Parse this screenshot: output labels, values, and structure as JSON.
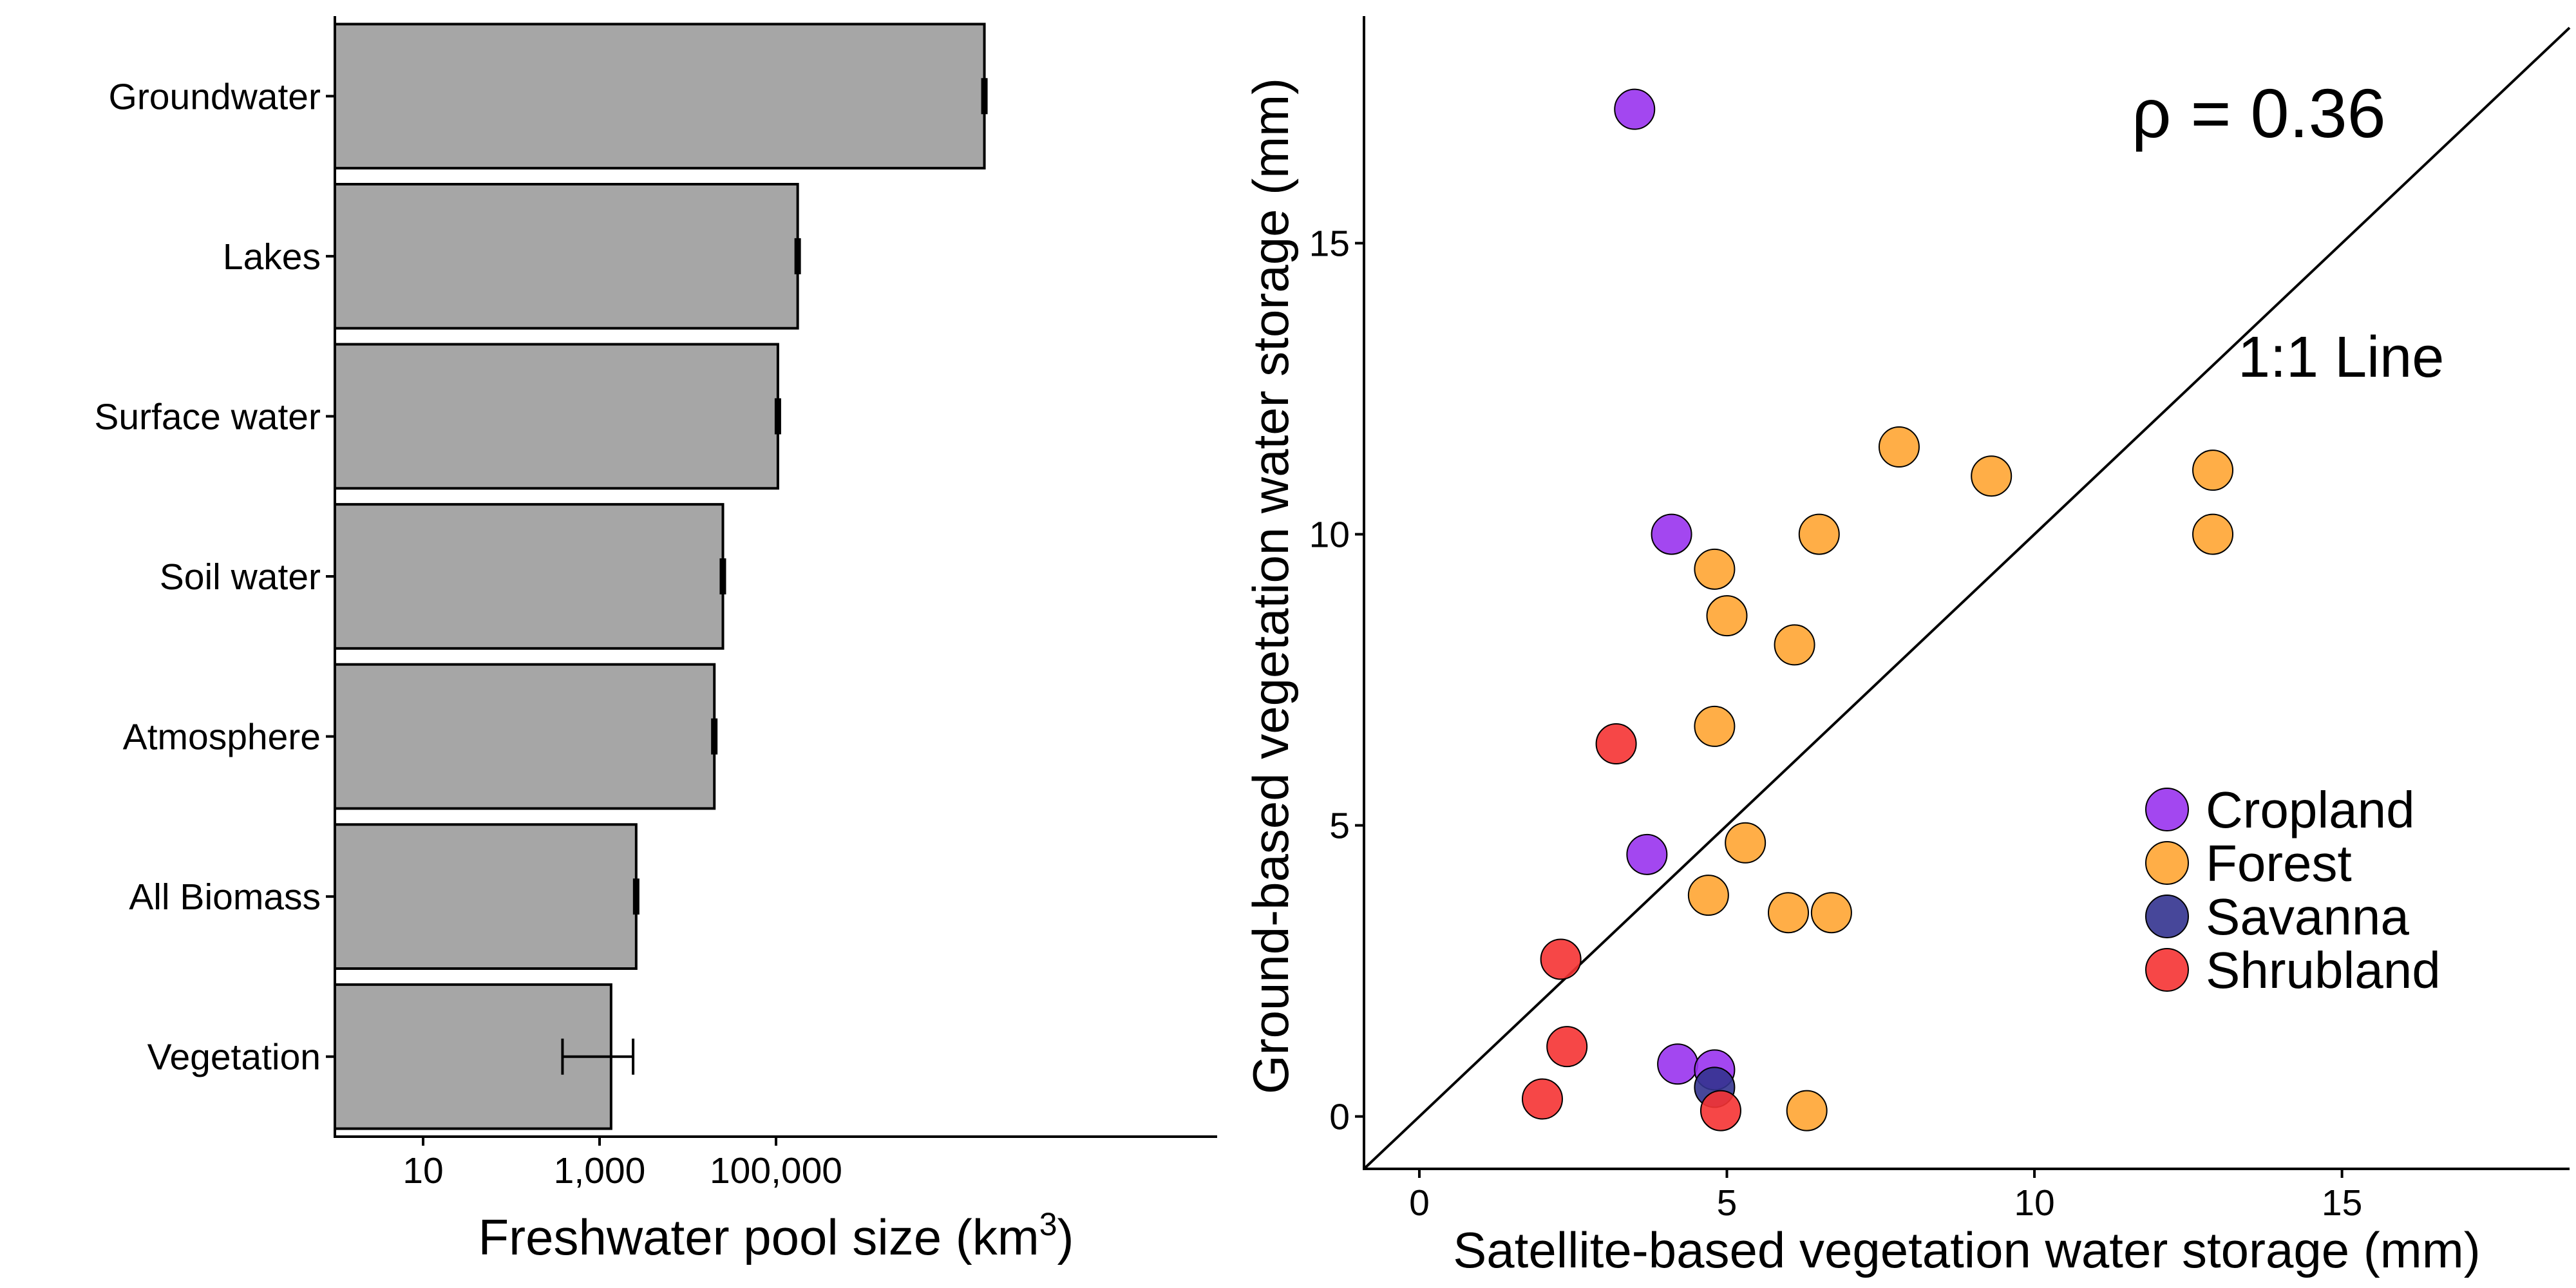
{
  "chart_data": [
    {
      "type": "bar",
      "orientation": "horizontal",
      "x_scale": "log10",
      "xlabel": "Freshwater pool size (km",
      "xlabel_superscript": "3",
      "xlabel_close": ")",
      "xlim": [
        1,
        10000000000
      ],
      "x_ticks": [
        {
          "value": 10,
          "label": "10"
        },
        {
          "value": 1000,
          "label": "1,000"
        },
        {
          "value": 100000,
          "label": "100,000"
        }
      ],
      "bar_color": "#a6a6a6",
      "categories": [
        "Groundwater",
        "Lakes",
        "Surface water",
        "Soil water",
        "Atmosphere",
        "All Biomass",
        "Vegetation"
      ],
      "values": [
        23000000,
        176000,
        105000,
        25000,
        20000,
        2600,
        1350
      ],
      "error_bars": [
        [
          23000000,
          23000000
        ],
        [
          176000,
          176000
        ],
        [
          105000,
          105000
        ],
        [
          24000,
          26000
        ],
        [
          19000,
          21000
        ],
        [
          2600,
          2600
        ],
        [
          380,
          2400
        ]
      ]
    },
    {
      "type": "scatter",
      "xlabel": "Satellite-based vegetation water storage (mm)",
      "ylabel": "Ground-based vegetation water storage (mm)",
      "xlim": [
        -0.9,
        18.7
      ],
      "ylim": [
        -0.9,
        18.9
      ],
      "x_ticks": [
        0,
        5,
        10,
        15
      ],
      "y_ticks": [
        0,
        5,
        10,
        15
      ],
      "annotations": {
        "rho": "ρ = 0.36",
        "line": "1:1 Line"
      },
      "legend_position": "bottom-right",
      "series": [
        {
          "name": "Cropland",
          "color": "#9933ee",
          "points": [
            [
              3.5,
              17.3
            ],
            [
              4.1,
              10.0
            ],
            [
              3.7,
              4.5
            ],
            [
              4.2,
              0.9
            ],
            [
              4.8,
              0.8
            ]
          ]
        },
        {
          "name": "Forest",
          "color": "#ffa533",
          "points": [
            [
              7.8,
              11.5
            ],
            [
              9.3,
              11.0
            ],
            [
              12.9,
              11.1
            ],
            [
              12.9,
              10.0
            ],
            [
              6.5,
              10.0
            ],
            [
              4.8,
              9.4
            ],
            [
              5.0,
              8.6
            ],
            [
              6.1,
              8.1
            ],
            [
              4.8,
              6.7
            ],
            [
              5.3,
              4.7
            ],
            [
              4.7,
              3.8
            ],
            [
              6.0,
              3.5
            ],
            [
              6.7,
              3.5
            ],
            [
              6.3,
              0.1
            ]
          ]
        },
        {
          "name": "Savanna",
          "color": "#33338f",
          "points": [
            [
              4.8,
              0.5
            ]
          ]
        },
        {
          "name": "Shrubland",
          "color": "#f53333",
          "points": [
            [
              3.2,
              6.4
            ],
            [
              2.3,
              2.7
            ],
            [
              2.4,
              1.2
            ],
            [
              2.0,
              0.3
            ],
            [
              4.9,
              0.1
            ]
          ]
        }
      ]
    }
  ]
}
